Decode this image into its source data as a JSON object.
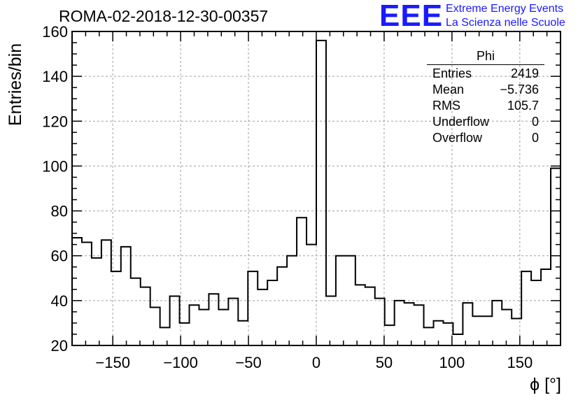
{
  "header": {
    "title": "ROMA-02-2018-12-30-00357",
    "logo_text": "EEE",
    "logo_line1": "Extreme Energy Events",
    "logo_line2": "La Scienza nelle Scuole"
  },
  "stats": {
    "title": "Phi",
    "rows": [
      {
        "label": "Entries",
        "value": "2419"
      },
      {
        "label": "Mean",
        "value": "−5.736"
      },
      {
        "label": "RMS",
        "value": "105.7"
      },
      {
        "label": "Underflow",
        "value": "0"
      },
      {
        "label": "Overflow",
        "value": "0"
      }
    ]
  },
  "colors": {
    "logo": "#1a1aff",
    "line": "#000000",
    "grid": "#a0a0a0"
  },
  "chart_data": {
    "type": "bar",
    "style": "step-histogram",
    "title": "ROMA-02-2018-12-30-00357",
    "xlabel": "ϕ [°]",
    "ylabel": "Entries/bin",
    "xlim": [
      -180,
      180
    ],
    "ylim": [
      20,
      160
    ],
    "xticks": [
      -150,
      -100,
      -50,
      0,
      50,
      100,
      150
    ],
    "xtick_labels": [
      "−150",
      "−100",
      "−50",
      "0",
      "50",
      "100",
      "150"
    ],
    "yticks": [
      20,
      40,
      60,
      80,
      100,
      120,
      140,
      160
    ],
    "grid": true,
    "bin_edges_start": -180,
    "bin_width": 7.2,
    "values": [
      68,
      66,
      59,
      67,
      53,
      64,
      50,
      46,
      37,
      28,
      42,
      30,
      38,
      36,
      43,
      36,
      41,
      31,
      53,
      45,
      49,
      55,
      60,
      77,
      65,
      156,
      42,
      60,
      60,
      47,
      46,
      41,
      29,
      40,
      39,
      38,
      28,
      31,
      30,
      25,
      39,
      33,
      33,
      40,
      36,
      32,
      53,
      49,
      54,
      99
    ]
  }
}
